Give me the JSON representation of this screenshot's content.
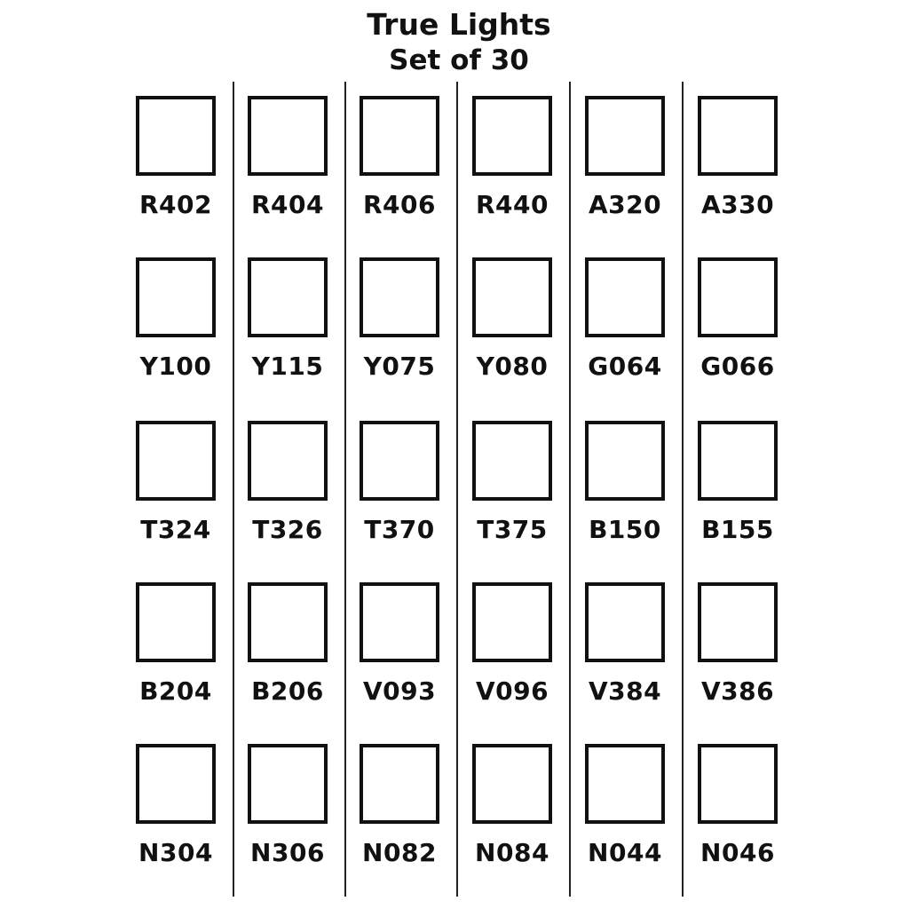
{
  "title": "True Lights",
  "subtitle": "Set of 30",
  "rows": [
    [
      "R402",
      "R404",
      "R406",
      "R440",
      "A320",
      "A330"
    ],
    [
      "Y100",
      "Y115",
      "Y075",
      "Y080",
      "G064",
      "G066"
    ],
    [
      "T324",
      "T326",
      "T370",
      "T375",
      "B150",
      "B155"
    ],
    [
      "B204",
      "B206",
      "V093",
      "V096",
      "V384",
      "V386"
    ],
    [
      "N304",
      "N306",
      "N082",
      "N084",
      "N044",
      "N046"
    ]
  ]
}
